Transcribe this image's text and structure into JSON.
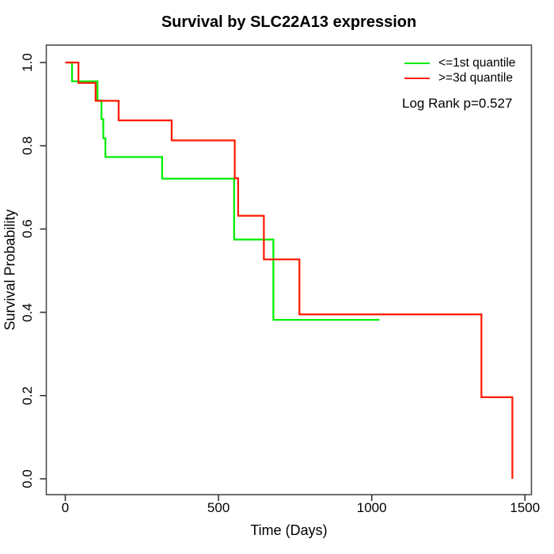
{
  "chart_data": {
    "type": "line",
    "subtype": "kaplan-meier-step",
    "title": "Survival by SLC22A13 expression",
    "xlabel": "Time (Days)",
    "ylabel": "Survival Probability",
    "xlim": [
      0,
      1500
    ],
    "ylim": [
      0.0,
      1.0
    ],
    "x_ticks": [
      0,
      500,
      1000,
      1500
    ],
    "x_tick_labels": [
      "0",
      "500",
      "1000",
      "1500"
    ],
    "y_ticks": [
      0.0,
      0.2,
      0.4,
      0.6,
      0.8,
      1.0
    ],
    "y_tick_labels": [
      "0.0",
      "0.2",
      "0.4",
      "0.6",
      "0.8",
      "1.0"
    ],
    "grid": false,
    "legend_position": "top-right",
    "annotation": "Log Rank p=0.527",
    "frame_color": "#4d4d4d",
    "series": [
      {
        "name": "<=1st quantile",
        "color": "#00ee00",
        "end_time": 1025,
        "steps": [
          [
            0,
            1.0
          ],
          [
            22,
            0.955
          ],
          [
            105,
            0.909
          ],
          [
            118,
            0.864
          ],
          [
            124,
            0.818
          ],
          [
            131,
            0.773
          ],
          [
            316,
            0.721
          ],
          [
            551,
            0.575
          ],
          [
            679,
            0.382
          ]
        ]
      },
      {
        "name": ">=3d quantile",
        "color": "#ff1a00",
        "end_time": 1459,
        "steps": [
          [
            0,
            1.0
          ],
          [
            43,
            0.951
          ],
          [
            99,
            0.908
          ],
          [
            174,
            0.861
          ],
          [
            347,
            0.813
          ],
          [
            553,
            0.722
          ],
          [
            564,
            0.632
          ],
          [
            648,
            0.527
          ],
          [
            764,
            0.395
          ],
          [
            1358,
            0.196
          ],
          [
            1459,
            0.0
          ]
        ]
      }
    ]
  }
}
